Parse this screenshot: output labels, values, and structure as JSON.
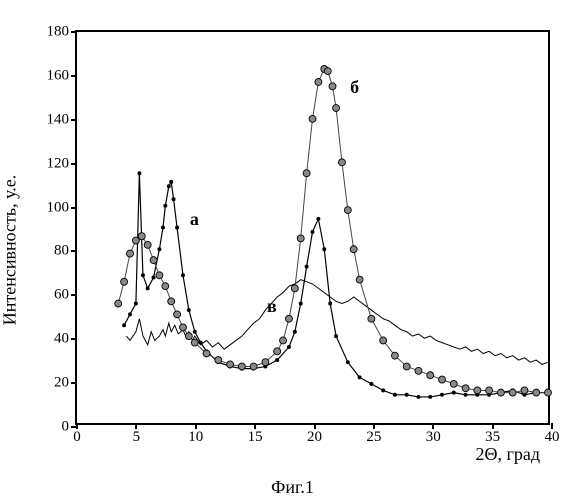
{
  "chart": {
    "type": "line",
    "caption": "Фиг.1",
    "ylabel": "Интенсивность, у.е.",
    "xlabel": "2Θ, град",
    "xlim": [
      0,
      40
    ],
    "ylim": [
      0,
      180
    ],
    "xticks": [
      0,
      5,
      10,
      15,
      20,
      25,
      30,
      35,
      40
    ],
    "yticks": [
      0,
      20,
      40,
      60,
      80,
      100,
      120,
      140,
      160,
      180
    ],
    "background_color": "#ffffff",
    "axis_color": "#000000",
    "label_fontsize": 18,
    "tick_fontsize": 15,
    "series": {
      "a": {
        "label": "а",
        "label_pos": {
          "x": 9.5,
          "y": 95
        },
        "color": "#000000",
        "line_width": 1.2,
        "marker": "dot",
        "marker_size": 2.0,
        "data": [
          [
            4.0,
            45
          ],
          [
            4.5,
            50
          ],
          [
            5.0,
            55
          ],
          [
            5.3,
            115
          ],
          [
            5.6,
            68
          ],
          [
            6.0,
            62
          ],
          [
            6.5,
            67
          ],
          [
            7.0,
            80
          ],
          [
            7.3,
            90
          ],
          [
            7.5,
            100
          ],
          [
            7.8,
            109
          ],
          [
            8.0,
            111
          ],
          [
            8.2,
            103
          ],
          [
            8.5,
            90
          ],
          [
            9.0,
            68
          ],
          [
            9.5,
            52
          ],
          [
            10.0,
            42
          ],
          [
            10.5,
            37
          ],
          [
            11.0,
            33
          ],
          [
            12.0,
            28
          ],
          [
            13.0,
            26
          ],
          [
            14.0,
            25
          ],
          [
            15.0,
            25
          ],
          [
            16.0,
            26
          ],
          [
            17.0,
            29
          ],
          [
            18.0,
            35
          ],
          [
            18.5,
            42
          ],
          [
            19.0,
            55
          ],
          [
            19.5,
            72
          ],
          [
            20.0,
            88
          ],
          [
            20.5,
            94
          ],
          [
            21.0,
            80
          ],
          [
            21.5,
            55
          ],
          [
            22.0,
            40
          ],
          [
            23.0,
            28
          ],
          [
            24.0,
            21
          ],
          [
            25.0,
            18
          ],
          [
            26.0,
            15
          ],
          [
            27.0,
            13
          ],
          [
            28.0,
            13
          ],
          [
            29.0,
            12
          ],
          [
            30.0,
            12
          ],
          [
            31.0,
            13
          ],
          [
            32.0,
            14
          ],
          [
            33.0,
            13
          ],
          [
            34.0,
            13
          ],
          [
            35.0,
            13
          ],
          [
            36.0,
            14
          ],
          [
            37.0,
            15
          ],
          [
            38.0,
            13
          ],
          [
            39.0,
            14
          ],
          [
            40.0,
            14
          ]
        ]
      },
      "b": {
        "label": "б",
        "label_pos": {
          "x": 23.0,
          "y": 155
        },
        "color": "#444444",
        "line_width": 1.0,
        "marker": "circle",
        "marker_size": 3.5,
        "data": [
          [
            3.5,
            55
          ],
          [
            4.0,
            65
          ],
          [
            4.5,
            78
          ],
          [
            5.0,
            84
          ],
          [
            5.5,
            86
          ],
          [
            6.0,
            82
          ],
          [
            6.5,
            75
          ],
          [
            7.0,
            68
          ],
          [
            7.5,
            63
          ],
          [
            8.0,
            56
          ],
          [
            8.5,
            50
          ],
          [
            9.0,
            44
          ],
          [
            9.5,
            40
          ],
          [
            10.0,
            37
          ],
          [
            11.0,
            32
          ],
          [
            12.0,
            29
          ],
          [
            13.0,
            27
          ],
          [
            14.0,
            26
          ],
          [
            15.0,
            26
          ],
          [
            16.0,
            28
          ],
          [
            17.0,
            33
          ],
          [
            17.5,
            38
          ],
          [
            18.0,
            48
          ],
          [
            18.5,
            62
          ],
          [
            19.0,
            85
          ],
          [
            19.5,
            115
          ],
          [
            20.0,
            140
          ],
          [
            20.5,
            157
          ],
          [
            21.0,
            163
          ],
          [
            21.3,
            162
          ],
          [
            21.7,
            155
          ],
          [
            22.0,
            145
          ],
          [
            22.5,
            120
          ],
          [
            23.0,
            98
          ],
          [
            23.5,
            80
          ],
          [
            24.0,
            66
          ],
          [
            25.0,
            48
          ],
          [
            26.0,
            38
          ],
          [
            27.0,
            31
          ],
          [
            28.0,
            26
          ],
          [
            29.0,
            24
          ],
          [
            30.0,
            22
          ],
          [
            31.0,
            20
          ],
          [
            32.0,
            18
          ],
          [
            33.0,
            16
          ],
          [
            34.0,
            15
          ],
          [
            35.0,
            15
          ],
          [
            36.0,
            14
          ],
          [
            37.0,
            14
          ],
          [
            38.0,
            15
          ],
          [
            39.0,
            14
          ],
          [
            40.0,
            14
          ]
        ]
      },
      "v": {
        "label": "в",
        "label_pos": {
          "x": 16.0,
          "y": 55
        },
        "color": "#000000",
        "line_width": 1.0,
        "marker": "none",
        "data": [
          [
            4.2,
            40
          ],
          [
            4.5,
            38
          ],
          [
            5.0,
            42
          ],
          [
            5.3,
            48
          ],
          [
            5.6,
            40
          ],
          [
            6.0,
            36
          ],
          [
            6.3,
            42
          ],
          [
            6.6,
            38
          ],
          [
            7.0,
            40
          ],
          [
            7.3,
            43
          ],
          [
            7.5,
            40
          ],
          [
            7.8,
            46
          ],
          [
            8.0,
            42
          ],
          [
            8.3,
            45
          ],
          [
            8.6,
            41
          ],
          [
            9.0,
            43
          ],
          [
            9.3,
            39
          ],
          [
            9.5,
            42
          ],
          [
            9.8,
            38
          ],
          [
            10.0,
            40
          ],
          [
            10.5,
            36
          ],
          [
            11.0,
            38
          ],
          [
            11.5,
            35
          ],
          [
            12.0,
            37
          ],
          [
            12.5,
            34
          ],
          [
            13.0,
            36
          ],
          [
            13.5,
            38
          ],
          [
            14.0,
            40
          ],
          [
            14.5,
            43
          ],
          [
            15.0,
            46
          ],
          [
            15.5,
            48
          ],
          [
            16.0,
            52
          ],
          [
            16.5,
            55
          ],
          [
            17.0,
            58
          ],
          [
            17.5,
            60
          ],
          [
            18.0,
            63
          ],
          [
            18.5,
            64
          ],
          [
            19.0,
            66
          ],
          [
            19.5,
            65
          ],
          [
            20.0,
            64
          ],
          [
            20.5,
            62
          ],
          [
            21.0,
            60
          ],
          [
            21.5,
            58
          ],
          [
            22.0,
            56
          ],
          [
            22.5,
            55
          ],
          [
            23.0,
            56
          ],
          [
            23.5,
            58
          ],
          [
            24.0,
            56
          ],
          [
            24.5,
            54
          ],
          [
            25.0,
            52
          ],
          [
            25.5,
            50
          ],
          [
            26.0,
            48
          ],
          [
            26.5,
            47
          ],
          [
            27.0,
            45
          ],
          [
            27.5,
            43
          ],
          [
            28.0,
            42
          ],
          [
            28.5,
            40
          ],
          [
            29.0,
            41
          ],
          [
            29.5,
            39
          ],
          [
            30.0,
            40
          ],
          [
            30.5,
            38
          ],
          [
            31.0,
            37
          ],
          [
            31.5,
            36
          ],
          [
            32.0,
            35
          ],
          [
            32.5,
            34
          ],
          [
            33.0,
            35
          ],
          [
            33.5,
            33
          ],
          [
            34.0,
            34
          ],
          [
            34.5,
            32
          ],
          [
            35.0,
            33
          ],
          [
            35.5,
            31
          ],
          [
            36.0,
            32
          ],
          [
            36.5,
            30
          ],
          [
            37.0,
            31
          ],
          [
            37.5,
            29
          ],
          [
            38.0,
            30
          ],
          [
            38.5,
            28
          ],
          [
            39.0,
            29
          ],
          [
            39.5,
            27
          ],
          [
            40.0,
            28
          ]
        ]
      }
    }
  }
}
